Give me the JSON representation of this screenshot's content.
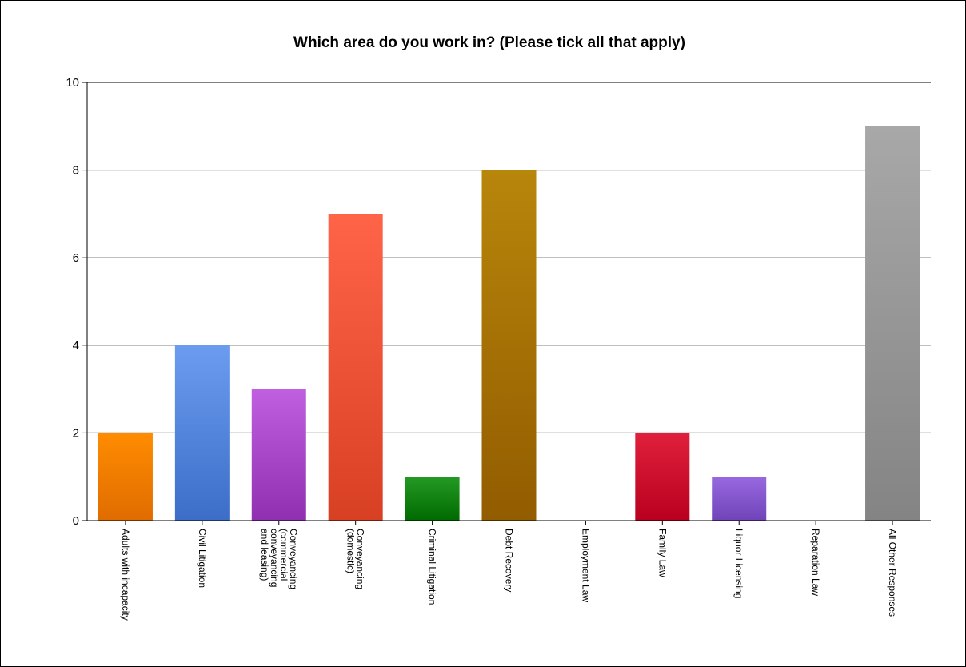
{
  "chart_data": {
    "type": "bar",
    "title": "Which area do you work in? (Please tick all that apply)",
    "xlabel": "",
    "ylabel": "",
    "ylim": [
      0,
      10
    ],
    "yticks": [
      0,
      2,
      4,
      6,
      8,
      10
    ],
    "grid": true,
    "legend": "none",
    "categories": [
      "Adults with incapacity",
      "Civil Litigation",
      "Conveyancing (commercial conveyancing and leasing)",
      "Conveyancing (domestic)",
      "Criminal Litigation",
      "Debt Recovery",
      "Employment Law",
      "Family Law",
      "Liquor Licensing",
      "Reparation Law",
      "All Other Responses"
    ],
    "category_label_lines": [
      [
        "Adults with incapacity"
      ],
      [
        "Civil Litigation"
      ],
      [
        "Conveyancing",
        "(commercial",
        "conveyancing",
        "and leasing)"
      ],
      [
        "Conveyancing",
        "(domestic)"
      ],
      [
        "Criminal Litigation"
      ],
      [
        "Debt Recovery"
      ],
      [
        "Employment Law"
      ],
      [
        "Family Law"
      ],
      [
        "Liquor Licensing"
      ],
      [
        "Reparation Law"
      ],
      [
        "All Other Responses"
      ]
    ],
    "values": [
      2,
      4,
      3,
      7,
      1,
      8,
      0,
      2,
      1,
      0,
      9
    ],
    "colors": [
      [
        "#ff8c00",
        "#e06c00"
      ],
      [
        "#6b9cf0",
        "#3c6ec8"
      ],
      [
        "#c060e0",
        "#9030b0"
      ],
      [
        "#ff6448",
        "#d84024"
      ],
      [
        "#249a24",
        "#006a00"
      ],
      [
        "#b8860b",
        "#925c00"
      ],
      [
        "#888888",
        "#666666"
      ],
      [
        "#e0203c",
        "#b8001e"
      ],
      [
        "#9868e0",
        "#7044b8"
      ],
      [
        "#888888",
        "#666666"
      ],
      [
        "#a8a8a8",
        "#848484"
      ]
    ]
  }
}
